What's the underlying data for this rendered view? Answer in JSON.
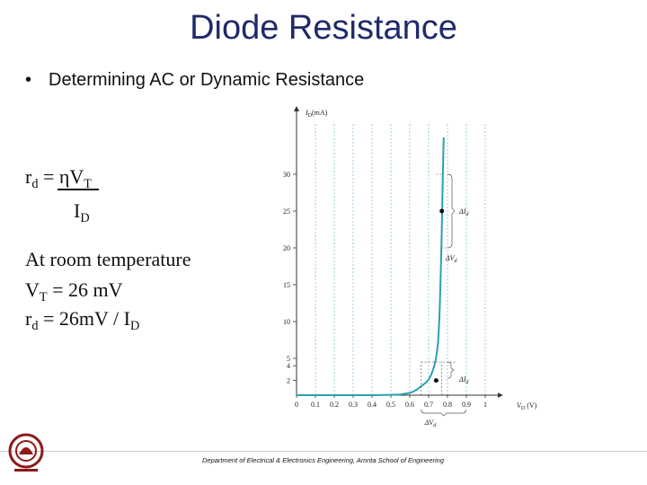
{
  "slide": {
    "title": "Diode Resistance",
    "bullet": "Determining AC or Dynamic Resistance",
    "formula": {
      "numerator_prefix": "r",
      "numerator_prefix_sub": "d",
      "numerator_eq": " = ηV",
      "numerator_sub": "T",
      "denominator": "I",
      "denominator_sub": "D"
    },
    "room_temp_heading": "At room temperature",
    "vt_line": {
      "prefix": "V",
      "sub": "T",
      "rest": " = 26 mV"
    },
    "rd_line": {
      "prefix": "r",
      "sub": "d",
      "rest": " = 26mV / I",
      "sub2": "D"
    }
  },
  "chart_data": {
    "type": "line",
    "xlabel": "V",
    "xlabel_sub": "D",
    "xlabel_unit": "(V)",
    "ylabel": "I",
    "ylabel_sub": "D",
    "ylabel_unit": "(mA)",
    "x_ticks": [
      "0",
      "0.1",
      "0.2",
      "0.3",
      "0.4",
      "0.5",
      "0.6",
      "0.7",
      "0.8",
      "0.9",
      "1"
    ],
    "y_ticks": [
      "2",
      "4",
      "5",
      "10",
      "15",
      "20",
      "25",
      "30"
    ],
    "xlim": [
      0,
      1
    ],
    "ylim": [
      0,
      35
    ],
    "series": [
      {
        "color": "#2aa0b0",
        "x": [
          0.0,
          0.1,
          0.2,
          0.3,
          0.4,
          0.5,
          0.55,
          0.6,
          0.62,
          0.64,
          0.66,
          0.68,
          0.7,
          0.71,
          0.72,
          0.73,
          0.735,
          0.74,
          0.745,
          0.75,
          0.753,
          0.756,
          0.759,
          0.762,
          0.765,
          0.768,
          0.771,
          0.774,
          0.777,
          0.78
        ],
        "y": [
          0.0,
          0.0,
          0.0,
          0.0,
          0.0,
          0.05,
          0.1,
          0.3,
          0.5,
          0.8,
          1.2,
          1.6,
          2.1,
          2.6,
          3.2,
          4.0,
          4.5,
          5.2,
          6.0,
          7.2,
          8.5,
          10.0,
          12.0,
          14.5,
          17.5,
          20.5,
          24.0,
          28.0,
          32.0,
          35.0
        ]
      }
    ],
    "points": [
      {
        "x": 0.74,
        "y": 2
      },
      {
        "x": 0.77,
        "y": 25
      }
    ],
    "annotations": [
      {
        "label": "ΔI",
        "sub": "d",
        "near": "upper-point"
      },
      {
        "label": "ΔV",
        "sub": "d",
        "near": "upper-point"
      },
      {
        "label": "ΔI",
        "sub": "d",
        "near": "lower-point"
      },
      {
        "label": "ΔV",
        "sub": "d",
        "near": "lower-point"
      }
    ]
  },
  "footer": {
    "text": "Department of Electrical & Electronics Engineering,  Amrita School of Engineering"
  },
  "logo": {
    "icon": "university-emblem-icon"
  }
}
